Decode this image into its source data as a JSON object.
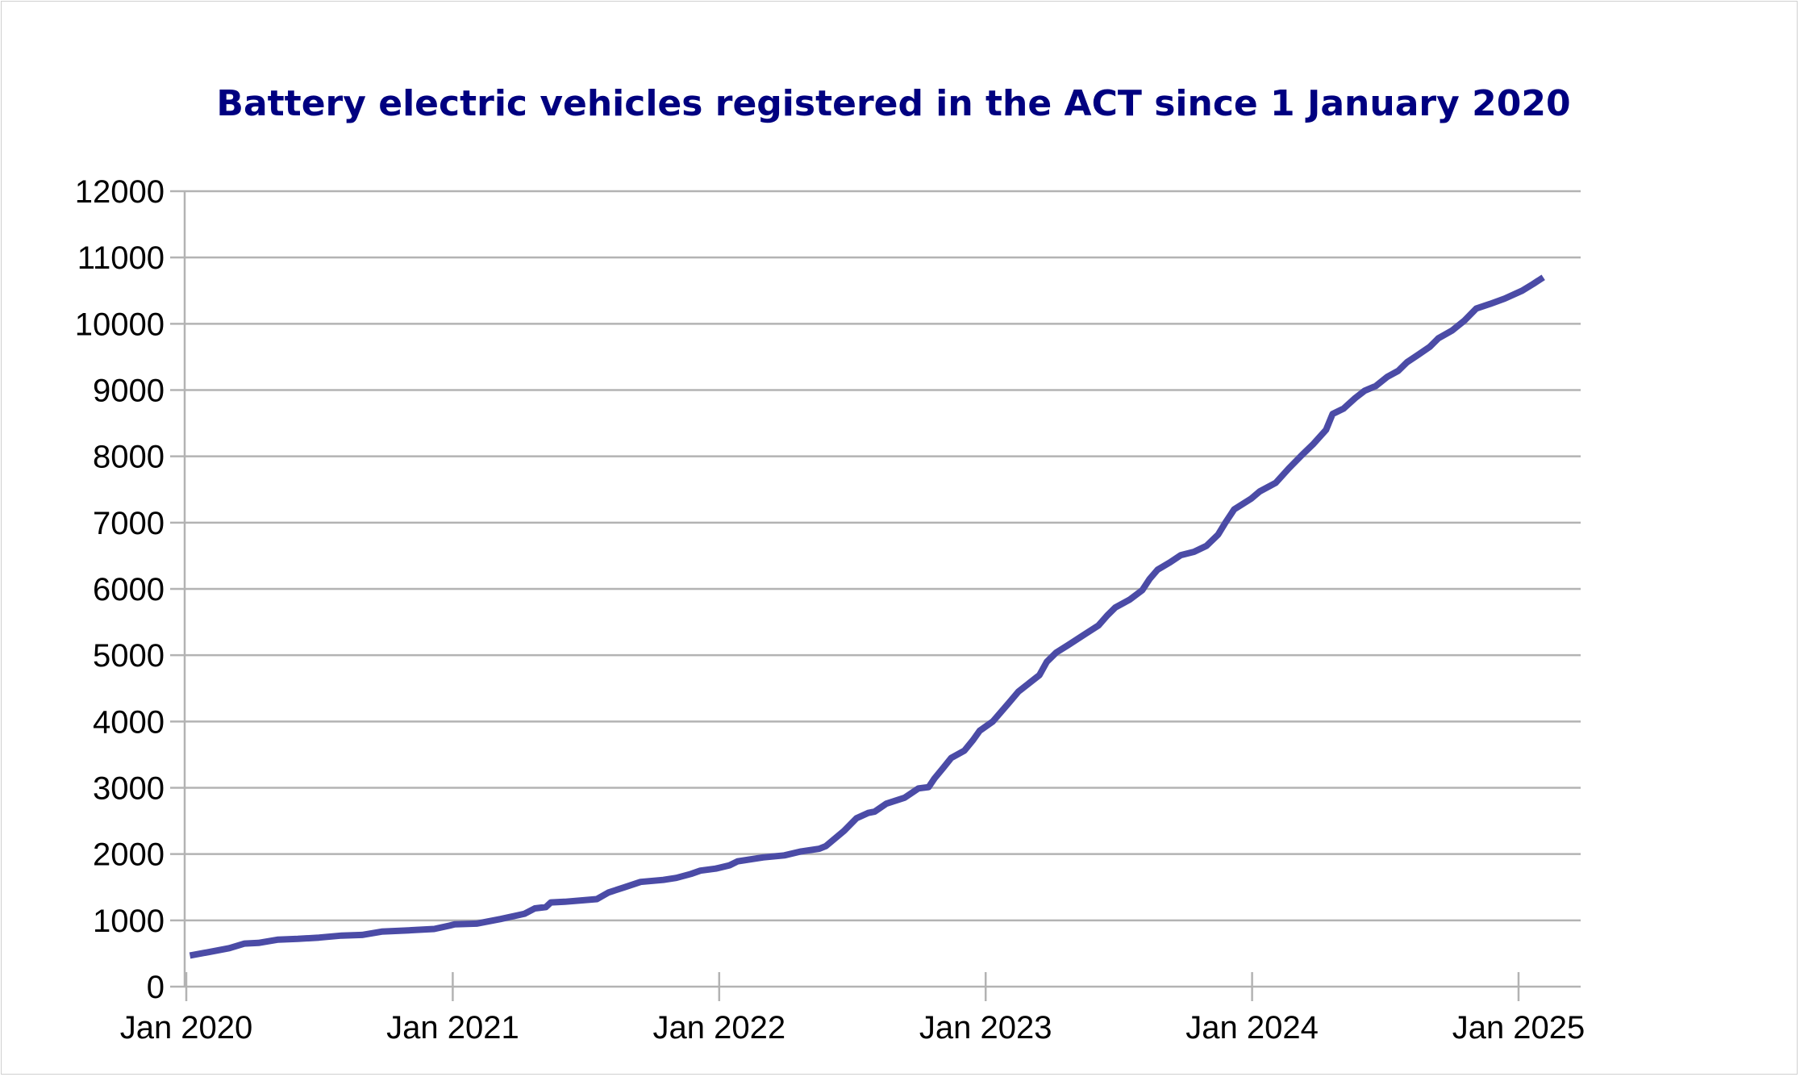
{
  "chart_data": {
    "type": "line",
    "title": "Battery electric vehicles registered in the ACT since 1 January 2020",
    "xlabel": "",
    "ylabel": "",
    "grid": true,
    "legend": "none",
    "ylim": [
      0,
      12000
    ],
    "xlim": [
      "2020-01-01",
      "2025-01-01"
    ],
    "x_ticks": [
      "Jan 2020",
      "Jan 2021",
      "Jan 2022",
      "Jan 2023",
      "Jan 2024",
      "Jan 2025"
    ],
    "y_ticks": [
      0,
      1000,
      2000,
      3000,
      4000,
      5000,
      6000,
      7000,
      8000,
      9000,
      10000,
      11000,
      12000
    ],
    "line_color": "#4b4ba6",
    "series": [
      {
        "values": [
          [
            "2020-01-06",
            470
          ],
          [
            "2020-01-31",
            520
          ],
          [
            "2020-02-29",
            580
          ],
          [
            "2020-03-21",
            650
          ],
          [
            "2020-04-09",
            660
          ],
          [
            "2020-05-06",
            710
          ],
          [
            "2020-06-02",
            720
          ],
          [
            "2020-07-01",
            740
          ],
          [
            "2020-08-01",
            770
          ],
          [
            "2020-08-29",
            780
          ],
          [
            "2020-09-25",
            830
          ],
          [
            "2020-11-01",
            850
          ],
          [
            "2020-12-06",
            870
          ],
          [
            "2020-12-27",
            920
          ],
          [
            "2021-01-03",
            940
          ],
          [
            "2021-02-02",
            950
          ],
          [
            "2021-03-07",
            1020
          ],
          [
            "2021-04-09",
            1100
          ],
          [
            "2021-04-23",
            1180
          ],
          [
            "2021-05-08",
            1200
          ],
          [
            "2021-05-15",
            1270
          ],
          [
            "2021-06-03",
            1280
          ],
          [
            "2021-07-17",
            1320
          ],
          [
            "2021-08-02",
            1420
          ],
          [
            "2021-08-24",
            1500
          ],
          [
            "2021-09-15",
            1580
          ],
          [
            "2021-10-16",
            1610
          ],
          [
            "2021-11-03",
            1640
          ],
          [
            "2021-11-23",
            1700
          ],
          [
            "2021-12-06",
            1750
          ],
          [
            "2021-12-27",
            1780
          ],
          [
            "2022-01-15",
            1830
          ],
          [
            "2022-01-26",
            1890
          ],
          [
            "2022-03-02",
            1950
          ],
          [
            "2022-03-31",
            1980
          ],
          [
            "2022-04-23",
            2040
          ],
          [
            "2022-05-18",
            2080
          ],
          [
            "2022-05-27",
            2120
          ],
          [
            "2022-06-21",
            2350
          ],
          [
            "2022-07-08",
            2540
          ],
          [
            "2022-07-24",
            2620
          ],
          [
            "2022-08-02",
            2640
          ],
          [
            "2022-08-18",
            2760
          ],
          [
            "2022-09-12",
            2850
          ],
          [
            "2022-10-01",
            2990
          ],
          [
            "2022-10-15",
            3010
          ],
          [
            "2022-10-23",
            3140
          ],
          [
            "2022-11-04",
            3300
          ],
          [
            "2022-11-15",
            3450
          ],
          [
            "2022-12-03",
            3560
          ],
          [
            "2022-12-15",
            3720
          ],
          [
            "2022-12-24",
            3860
          ],
          [
            "2023-01-11",
            4000
          ],
          [
            "2023-02-02",
            4280
          ],
          [
            "2023-02-15",
            4450
          ],
          [
            "2023-03-02",
            4580
          ],
          [
            "2023-03-16",
            4700
          ],
          [
            "2023-03-26",
            4900
          ],
          [
            "2023-04-08",
            5040
          ],
          [
            "2023-04-24",
            5150
          ],
          [
            "2023-05-19",
            5330
          ],
          [
            "2023-06-05",
            5450
          ],
          [
            "2023-06-17",
            5600
          ],
          [
            "2023-06-28",
            5720
          ],
          [
            "2023-07-18",
            5840
          ],
          [
            "2023-08-04",
            5980
          ],
          [
            "2023-08-14",
            6150
          ],
          [
            "2023-08-25",
            6290
          ],
          [
            "2023-09-11",
            6400
          ],
          [
            "2023-09-26",
            6510
          ],
          [
            "2023-10-14",
            6560
          ],
          [
            "2023-10-31",
            6650
          ],
          [
            "2023-11-16",
            6820
          ],
          [
            "2023-11-26",
            7000
          ],
          [
            "2023-12-08",
            7200
          ],
          [
            "2023-12-31",
            7360
          ],
          [
            "2024-01-12",
            7470
          ],
          [
            "2024-02-03",
            7600
          ],
          [
            "2024-02-21",
            7820
          ],
          [
            "2024-03-10",
            8020
          ],
          [
            "2024-03-25",
            8180
          ],
          [
            "2024-04-12",
            8400
          ],
          [
            "2024-04-21",
            8640
          ],
          [
            "2024-05-06",
            8720
          ],
          [
            "2024-05-22",
            8880
          ],
          [
            "2024-06-04",
            8990
          ],
          [
            "2024-06-19",
            9060
          ],
          [
            "2024-07-05",
            9200
          ],
          [
            "2024-07-20",
            9290
          ],
          [
            "2024-08-01",
            9420
          ],
          [
            "2024-08-16",
            9530
          ],
          [
            "2024-09-01",
            9650
          ],
          [
            "2024-09-13",
            9780
          ],
          [
            "2024-10-02",
            9900
          ],
          [
            "2024-10-19",
            10050
          ],
          [
            "2024-11-04",
            10230
          ],
          [
            "2024-11-23",
            10300
          ],
          [
            "2024-12-13",
            10380
          ],
          [
            "2025-01-06",
            10500
          ],
          [
            "2025-01-21",
            10600
          ],
          [
            "2025-02-04",
            10700
          ]
        ]
      }
    ]
  }
}
